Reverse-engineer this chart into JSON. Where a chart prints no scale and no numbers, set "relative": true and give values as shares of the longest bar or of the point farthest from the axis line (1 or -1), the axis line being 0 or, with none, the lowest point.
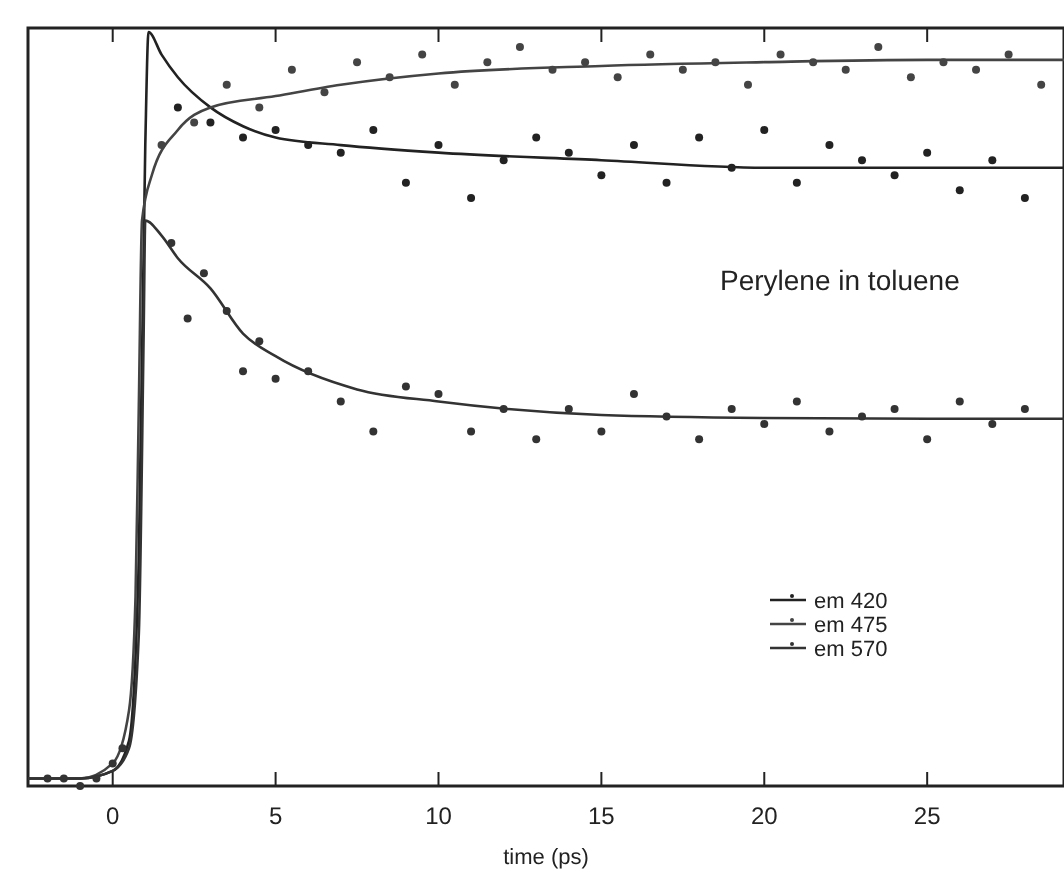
{
  "chart_data": {
    "type": "line",
    "xlabel": "time (ps)",
    "annotations": [
      "Perylene in toluene"
    ],
    "relative": true,
    "xlim": [
      -2.6,
      29.2
    ],
    "xticks": [
      0,
      5,
      10,
      15,
      20,
      25
    ],
    "tick_labels": "x",
    "legend": "bottom right",
    "series": [
      {
        "name": "em 420",
        "color": "#222222",
        "marker": "none",
        "x": [
          -2.6,
          -1,
          0,
          0.5,
          0.8,
          1.0,
          1.1,
          1.5,
          2,
          3,
          4,
          5,
          7,
          10,
          15,
          20,
          25,
          29.2
        ],
        "values": [
          0.01,
          0.01,
          0.02,
          0.06,
          0.3,
          0.85,
          1.0,
          0.97,
          0.94,
          0.9,
          0.875,
          0.86,
          0.85,
          0.84,
          0.83,
          0.82,
          0.82,
          0.82
        ]
      },
      {
        "name": "em 475",
        "color": "#444444",
        "marker": "none",
        "x": [
          -2.6,
          -1,
          0,
          0.5,
          0.7,
          0.8,
          0.9,
          1.2,
          2,
          3,
          5,
          7,
          10,
          15,
          20,
          25,
          29.2
        ],
        "values": [
          0.01,
          0.01,
          0.03,
          0.1,
          0.25,
          0.5,
          0.75,
          0.81,
          0.87,
          0.9,
          0.915,
          0.93,
          0.945,
          0.955,
          0.96,
          0.963,
          0.963
        ]
      },
      {
        "name": "em 570",
        "color": "#333333",
        "marker": "none",
        "x": [
          -2.6,
          -1,
          0,
          0.5,
          0.8,
          0.95,
          1.0,
          1.5,
          2,
          3,
          4,
          5,
          7.5,
          10,
          15,
          20,
          25,
          29.2
        ],
        "values": [
          0.01,
          0.01,
          0.02,
          0.05,
          0.2,
          0.6,
          0.75,
          0.73,
          0.7,
          0.66,
          0.6,
          0.57,
          0.526,
          0.51,
          0.492,
          0.488,
          0.487,
          0.487
        ]
      },
      {
        "type": "scatter",
        "color": "#222222",
        "marker": "circle",
        "x": [
          2,
          3,
          4,
          5,
          6,
          7,
          8,
          9,
          10,
          11,
          12,
          13,
          14,
          15,
          16,
          17,
          18,
          19,
          20,
          21,
          22,
          23,
          24,
          25,
          26,
          27,
          28
        ],
        "values": [
          0.9,
          0.88,
          0.86,
          0.87,
          0.85,
          0.84,
          0.87,
          0.8,
          0.85,
          0.78,
          0.83,
          0.86,
          0.84,
          0.81,
          0.85,
          0.8,
          0.86,
          0.82,
          0.87,
          0.8,
          0.85,
          0.83,
          0.81,
          0.84,
          0.79,
          0.83,
          0.78
        ]
      },
      {
        "type": "scatter",
        "color": "#444444",
        "marker": "circle",
        "x": [
          1.5,
          2.5,
          3.5,
          4.5,
          5.5,
          6.5,
          7.5,
          8.5,
          9.5,
          10.5,
          11.5,
          12.5,
          13.5,
          14.5,
          15.5,
          16.5,
          17.5,
          18.5,
          19.5,
          20.5,
          21.5,
          22.5,
          23.5,
          24.5,
          25.5,
          26.5,
          27.5,
          28.5
        ],
        "values": [
          0.85,
          0.88,
          0.93,
          0.9,
          0.95,
          0.92,
          0.96,
          0.94,
          0.97,
          0.93,
          0.96,
          0.98,
          0.95,
          0.96,
          0.94,
          0.97,
          0.95,
          0.96,
          0.93,
          0.97,
          0.96,
          0.95,
          0.98,
          0.94,
          0.96,
          0.95,
          0.97,
          0.93
        ]
      },
      {
        "type": "scatter",
        "color": "#333333",
        "marker": "circle",
        "x": [
          -2,
          -1.5,
          -1,
          -0.5,
          0,
          0.3,
          1.8,
          2.3,
          2.8,
          3.5,
          4,
          4.5,
          5,
          6,
          7,
          8,
          9,
          10,
          11,
          12,
          13,
          14,
          15,
          16,
          17,
          18,
          19,
          20,
          21,
          22,
          23,
          24,
          25,
          26,
          27,
          28
        ],
        "values": [
          0.01,
          0.01,
          0.0,
          0.01,
          0.03,
          0.05,
          0.72,
          0.62,
          0.68,
          0.63,
          0.55,
          0.59,
          0.54,
          0.55,
          0.51,
          0.47,
          0.53,
          0.52,
          0.47,
          0.5,
          0.46,
          0.5,
          0.47,
          0.52,
          0.49,
          0.46,
          0.5,
          0.48,
          0.51,
          0.47,
          0.49,
          0.5,
          0.46,
          0.51,
          0.48,
          0.5
        ]
      }
    ]
  }
}
